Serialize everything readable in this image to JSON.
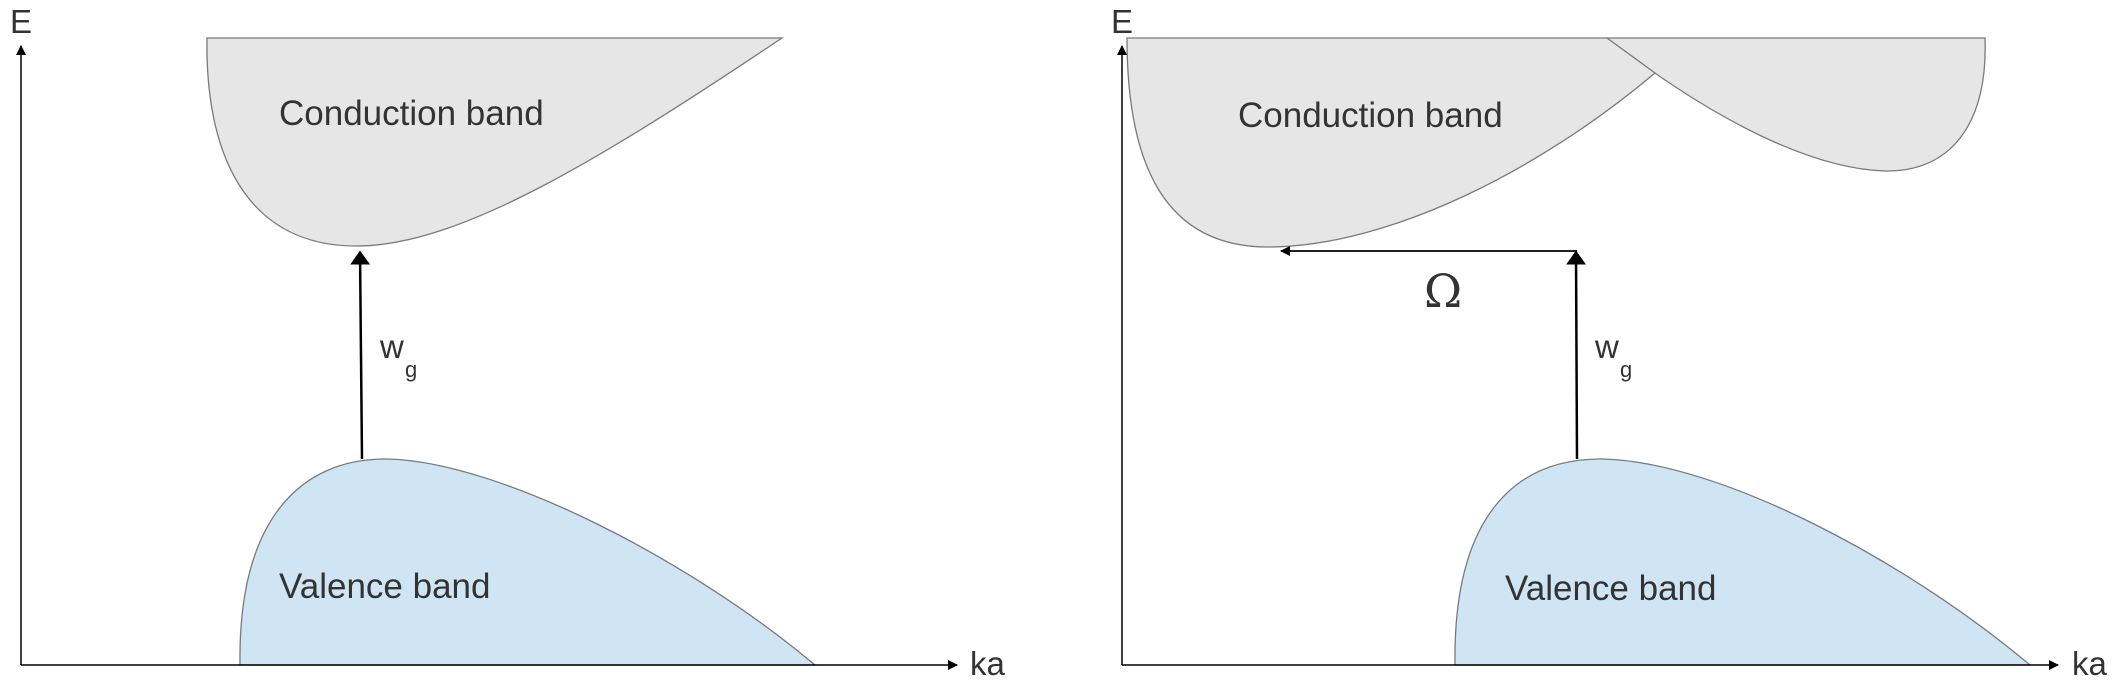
{
  "diagrams": [
    {
      "axes": {
        "y_label": "E",
        "x_label": "ka"
      },
      "conduction_label": "Conduction band",
      "valence_label": "Valence band",
      "gap_symbol": {
        "main": "w",
        "sub": "g"
      }
    },
    {
      "axes": {
        "y_label": "E",
        "x_label": "ka"
      },
      "conduction_label": "Conduction band",
      "valence_label": "Valence band",
      "gap_symbol": {
        "main": "w",
        "sub": "g"
      },
      "momentum_symbol": "Ω"
    }
  ],
  "colors": {
    "conduction_fill": "#e6e6e6",
    "valence_fill": "#cfe5f3",
    "band_stroke": "#7a7a7a",
    "axis": "#000000",
    "text": "#333333"
  }
}
